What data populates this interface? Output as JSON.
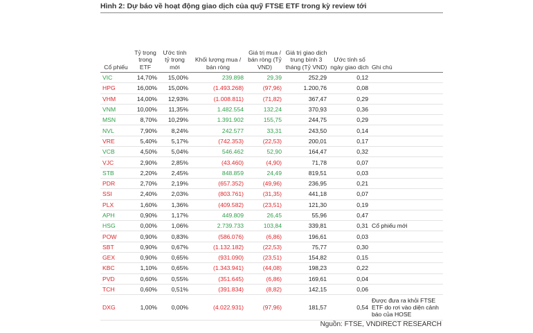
{
  "header": {
    "title": "Hình 2: Dự báo về hoạt động giao dịch của quỹ FTSE ETF trong kỳ review tới"
  },
  "table": {
    "columns": [
      "Cổ phiếu",
      "Tỷ trọng trong ETF",
      "Ước tính tỷ trọng mới",
      "Khối lượng mua / bán ròng",
      "Giá trị mua / bán ròng (Tỷ VND)",
      "Giá trị giao dịch trung bình 3 tháng (Tỷ VND)",
      "Ước tính số ngày giao dịch",
      "Ghi chú"
    ],
    "rows": [
      [
        "VIC",
        "14,70%",
        "15,00%",
        "239.898",
        "29,39",
        "252,29",
        "0,12"
      ],
      [
        "HPG",
        "16,00%",
        "15,00%",
        "(1.493.268)",
        "(97,96)",
        "1.200,76",
        "0,08"
      ],
      [
        "VHM",
        "14,00%",
        "12,93%",
        "(1.008.811)",
        "(71,82)",
        "367,47",
        "0,29"
      ],
      [
        "VNM",
        "10,00%",
        "11,35%",
        "1.482.554",
        "132,24",
        "370,93",
        "0,36"
      ],
      [
        "MSN",
        "8,70%",
        "10,29%",
        "1.391.902",
        "155,75",
        "244,75",
        "0,29"
      ],
      [
        "NVL",
        "7,90%",
        "8,24%",
        "242.577",
        "33,31",
        "243,50",
        "0,14"
      ],
      [
        "VRE",
        "5,40%",
        "5,17%",
        "(742.353)",
        "(22,53)",
        "200,01",
        "0,17"
      ],
      [
        "VCB",
        "4,50%",
        "5,04%",
        "546.462",
        "52,90",
        "164,47",
        "0,32"
      ],
      [
        "VJC",
        "2,90%",
        "2,85%",
        "(43.460)",
        "(4,90)",
        "71,78",
        "0,07"
      ],
      [
        "STB",
        "2,20%",
        "2,45%",
        "848.859",
        "24,49",
        "819,51",
        "0,03"
      ],
      [
        "PDR",
        "2,70%",
        "2,19%",
        "(657.352)",
        "(49,96)",
        "236,95",
        "0,21"
      ],
      [
        "SSI",
        "2,40%",
        "2,03%",
        "(803.761)",
        "(31,35)",
        "441,18",
        "0,07"
      ],
      [
        "PLX",
        "1,60%",
        "1,36%",
        "(409.582)",
        "(23,51)",
        "121,30",
        "0,19"
      ],
      [
        "APH",
        "0,90%",
        "1,17%",
        "449.809",
        "26,45",
        "55,96",
        "0,47"
      ],
      [
        "HSG",
        "0,00%",
        "1,06%",
        "2.739.733",
        "103,84",
        "339,81",
        "0,31",
        "Cổ phiếu mới"
      ],
      [
        "POW",
        "0,90%",
        "0,83%",
        "(586.076)",
        "(6,86)",
        "196,61",
        "0,03"
      ],
      [
        "SBT",
        "0,90%",
        "0,67%",
        "(1.132.182)",
        "(22,53)",
        "75,77",
        "0,30"
      ],
      [
        "GEX",
        "0,90%",
        "0,65%",
        "(931.090)",
        "(23,51)",
        "154,82",
        "0,15"
      ],
      [
        "KBC",
        "1,10%",
        "0,65%",
        "(1.343.941)",
        "(44,08)",
        "198,23",
        "0,22"
      ],
      [
        "PVD",
        "0,60%",
        "0,55%",
        "(351.645)",
        "(6,86)",
        "169,61",
        "0,04"
      ],
      [
        "TCH",
        "0,60%",
        "0,51%",
        "(391.834)",
        "(8,82)",
        "142,15",
        "0,06"
      ],
      [
        "DXG",
        "1,00%",
        "0,00%",
        "(4.022.931)",
        "(97,96)",
        "181,57",
        "0,54",
        "Được đưa ra khỏi FTSE ETF do rơi vào diện cảnh báo của HOSE"
      ]
    ],
    "row_colors": [
      "#2f9e4a",
      "#e0242a",
      "#e0242a",
      "#2f9e4a",
      "#2f9e4a",
      "#2f9e4a",
      "#e0242a",
      "#2f9e4a",
      "#e0242a",
      "#2f9e4a",
      "#e0242a",
      "#e0242a",
      "#e0242a",
      "#2f9e4a",
      "#2f9e4a",
      "#e0242a",
      "#e0242a",
      "#e0242a",
      "#e0242a",
      "#e0242a",
      "#e0242a",
      "#e0242a"
    ]
  },
  "footer": {
    "source": "Nguồn: FTSE, VNDIRECT RESEARCH"
  }
}
